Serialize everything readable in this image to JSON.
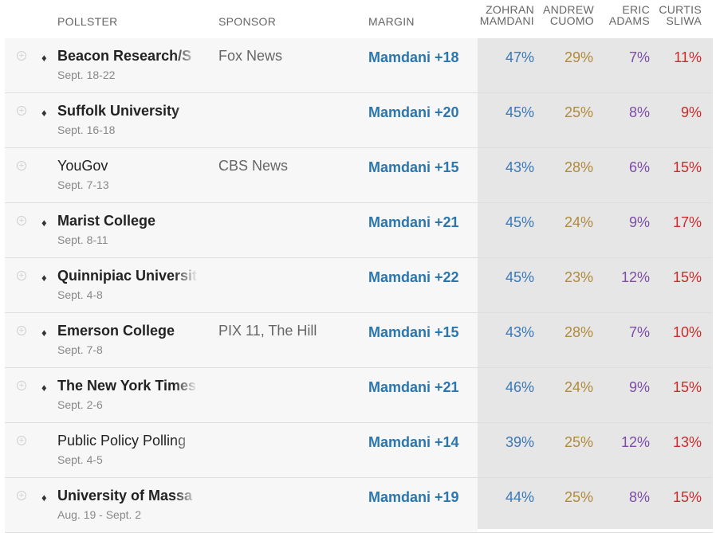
{
  "headers": {
    "pollster": "POLLSTER",
    "sponsor": "SPONSOR",
    "margin": "MARGIN",
    "mamdani": [
      "ZOHRAN",
      "MAMDANI"
    ],
    "cuomo": [
      "ANDREW",
      "CUOMO"
    ],
    "adams": [
      "ERIC",
      "ADAMS"
    ],
    "sliwa": [
      "CURTIS",
      "SLIWA"
    ]
  },
  "colors": {
    "margin": "#2a76ad",
    "mamdani": "#3a78b5",
    "cuomo": "#b08a3c",
    "adams": "#7d4ca8",
    "sliwa": "#cc2a2a"
  },
  "rows": [
    {
      "pollster": "Beacon Research/S",
      "rated": true,
      "dates": "Sept. 18-22",
      "sponsor": "Fox News",
      "margin": "Mamdani +18",
      "mamdani": "47%",
      "cuomo": "29%",
      "adams": "7%",
      "sliwa": "11%"
    },
    {
      "pollster": "Suffolk University",
      "rated": true,
      "dates": "Sept. 16-18",
      "sponsor": "",
      "margin": "Mamdani +20",
      "mamdani": "45%",
      "cuomo": "25%",
      "adams": "8%",
      "sliwa": "9%"
    },
    {
      "pollster": "YouGov",
      "rated": false,
      "dates": "Sept. 7-13",
      "sponsor": "CBS News",
      "margin": "Mamdani +15",
      "mamdani": "43%",
      "cuomo": "28%",
      "adams": "6%",
      "sliwa": "15%"
    },
    {
      "pollster": "Marist College",
      "rated": true,
      "dates": "Sept. 8-11",
      "sponsor": "",
      "margin": "Mamdani +21",
      "mamdani": "45%",
      "cuomo": "24%",
      "adams": "9%",
      "sliwa": "17%"
    },
    {
      "pollster": "Quinnipiac Universit",
      "rated": true,
      "dates": "Sept. 4-8",
      "sponsor": "",
      "margin": "Mamdani +22",
      "mamdani": "45%",
      "cuomo": "23%",
      "adams": "12%",
      "sliwa": "15%"
    },
    {
      "pollster": "Emerson College",
      "rated": true,
      "dates": "Sept. 7-8",
      "sponsor": "PIX 11, The Hill",
      "margin": "Mamdani +15",
      "mamdani": "43%",
      "cuomo": "28%",
      "adams": "7%",
      "sliwa": "10%"
    },
    {
      "pollster": "The New York Times",
      "rated": true,
      "dates": "Sept. 2-6",
      "sponsor": "",
      "margin": "Mamdani +21",
      "mamdani": "46%",
      "cuomo": "24%",
      "adams": "9%",
      "sliwa": "15%"
    },
    {
      "pollster": "Public Policy Polling",
      "rated": false,
      "dates": "Sept. 4-5",
      "sponsor": "",
      "margin": "Mamdani +14",
      "mamdani": "39%",
      "cuomo": "25%",
      "adams": "12%",
      "sliwa": "13%"
    },
    {
      "pollster": "University of Massa",
      "rated": true,
      "dates": "Aug. 19 - Sept. 2",
      "sponsor": "",
      "margin": "Mamdani +19",
      "mamdani": "44%",
      "cuomo": "25%",
      "adams": "8%",
      "sliwa": "15%"
    }
  ]
}
